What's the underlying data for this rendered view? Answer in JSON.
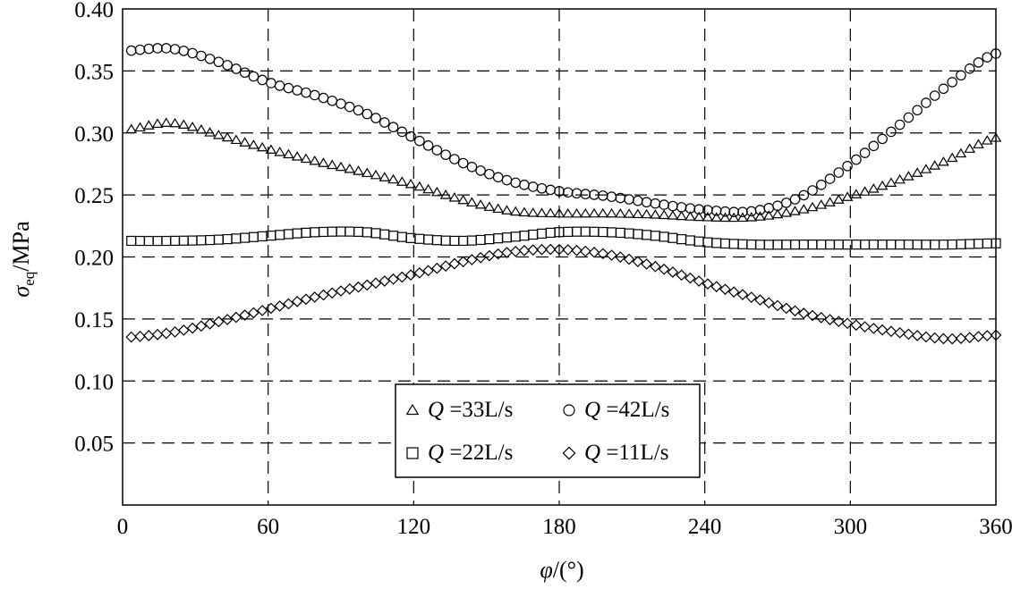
{
  "chart_data": {
    "type": "scatter",
    "xlabel": "φ/(°)",
    "ylabel": "σeq /MPa",
    "ylabel_main": "σ",
    "ylabel_sub": "eq",
    "ylabel_unit": "/MPa",
    "xlabel_main": "φ",
    "xlabel_unit": "/(°)",
    "xlim": [
      0,
      360
    ],
    "ylim": [
      0,
      0.4
    ],
    "xticks": [
      "0",
      "60",
      "120",
      "180",
      "240",
      "300",
      "360"
    ],
    "yticks": [
      "0.05",
      "0.10",
      "0.15",
      "0.20",
      "0.25",
      "0.30",
      "0.35",
      "0.40"
    ],
    "grid": true,
    "legend_position": "bottom-center",
    "series": [
      {
        "name": "Q =33L/s",
        "legend_q": "Q",
        "legend_rest": " =33L/s",
        "marker": "triangle",
        "x": [
          0,
          20,
          40,
          60,
          80,
          100,
          120,
          140,
          160,
          180,
          200,
          220,
          240,
          260,
          280,
          300,
          320,
          340,
          360
        ],
        "y": [
          0.302,
          0.308,
          0.298,
          0.287,
          0.277,
          0.268,
          0.258,
          0.246,
          0.237,
          0.235,
          0.235,
          0.234,
          0.232,
          0.232,
          0.238,
          0.249,
          0.262,
          0.278,
          0.296
        ]
      },
      {
        "name": "Q =42L/s",
        "legend_q": "Q",
        "legend_rest": " =42L/s",
        "marker": "circle",
        "x": [
          0,
          20,
          40,
          60,
          80,
          100,
          120,
          140,
          160,
          180,
          200,
          220,
          240,
          260,
          280,
          300,
          320,
          340,
          360
        ],
        "y": [
          0.366,
          0.368,
          0.357,
          0.341,
          0.33,
          0.316,
          0.296,
          0.276,
          0.261,
          0.253,
          0.249,
          0.243,
          0.238,
          0.237,
          0.249,
          0.275,
          0.306,
          0.338,
          0.364
        ]
      },
      {
        "name": "Q =22L/s",
        "legend_q": "Q",
        "legend_rest": " =22L/s",
        "marker": "square",
        "x": [
          0,
          20,
          40,
          60,
          80,
          100,
          120,
          140,
          160,
          180,
          200,
          220,
          240,
          260,
          280,
          300,
          320,
          340,
          360
        ],
        "y": [
          0.213,
          0.213,
          0.214,
          0.217,
          0.22,
          0.22,
          0.215,
          0.213,
          0.216,
          0.22,
          0.22,
          0.217,
          0.212,
          0.21,
          0.21,
          0.21,
          0.21,
          0.21,
          0.211
        ]
      },
      {
        "name": "Q =11L/s",
        "legend_q": "Q",
        "legend_rest": " =11L/s",
        "marker": "diamond",
        "x": [
          0,
          20,
          40,
          60,
          80,
          100,
          120,
          140,
          160,
          180,
          200,
          220,
          240,
          260,
          280,
          300,
          320,
          340,
          360
        ],
        "y": [
          0.135,
          0.139,
          0.148,
          0.158,
          0.168,
          0.177,
          0.186,
          0.196,
          0.204,
          0.206,
          0.202,
          0.192,
          0.179,
          0.167,
          0.155,
          0.146,
          0.139,
          0.134,
          0.137
        ]
      }
    ]
  }
}
